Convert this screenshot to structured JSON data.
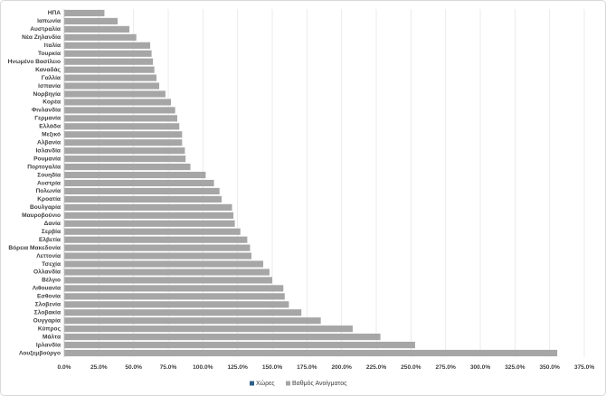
{
  "chart_data": {
    "type": "barh",
    "categories": [
      "ΗΠΑ",
      "Ιαπωνία",
      "Αυστραλία",
      "Νέα Ζηλανδία",
      "Ιταλία",
      "Τουρκία",
      "Ηνωμένο Βασίλειο",
      "Καναδάς",
      "Γαλλία",
      "Ισπανία",
      "Νορβηγία",
      "Κορέα",
      "Φινλανδία",
      "Γερμανία",
      "Ελλάδα",
      "Μεξικό",
      "Αλβανία",
      "Ισλανδία",
      "Ρουμανία",
      "Πορτογαλία",
      "Σουηδία",
      "Αυστρία",
      "Πολωνία",
      "Κροατία",
      "Βουλγαρία",
      "Μαυροβούνιο",
      "Δανία",
      "Σερβία",
      "Ελβετία",
      "Βόρεια Μακεδονία",
      "Λεττονία",
      "Τσεχία",
      "Ολλανδία",
      "Βέλγιο",
      "Λιθουανία",
      "Εσθονία",
      "Σλοβενία",
      "Σλοβακία",
      "Ουγγαρία",
      "Κύπρος",
      "Μάλτα",
      "Ιρλανδία",
      "Λουξεμβούργο"
    ],
    "series": [
      {
        "name": "Βαθμός Ανοίγματος",
        "color": "#a6a6a6",
        "values": [
          29,
          38.5,
          47,
          52,
          62,
          63,
          64,
          65,
          66.5,
          68.5,
          73,
          77,
          80,
          81.5,
          83,
          85,
          85,
          87,
          87.5,
          91,
          102,
          108,
          112,
          113.5,
          121,
          122,
          123,
          127,
          132,
          134,
          135,
          143.5,
          148,
          150,
          158,
          159,
          162,
          171,
          185,
          208,
          228,
          253,
          355.5
        ]
      }
    ],
    "legend_entries": [
      {
        "name": "Χώρες",
        "color": "#2e5f8a"
      }
    ],
    "xlim": [
      0,
      375
    ],
    "xticks": [
      {
        "value": 0,
        "label": "0.0%"
      },
      {
        "value": 25,
        "label": "25.0%"
      },
      {
        "value": 50,
        "label": "50.0%"
      },
      {
        "value": 75,
        "label": "75.0%"
      },
      {
        "value": 100,
        "label": "100.0%"
      },
      {
        "value": 125,
        "label": "125.0%"
      },
      {
        "value": 150,
        "label": "150.0%"
      },
      {
        "value": 175,
        "label": "175.0%"
      },
      {
        "value": 200,
        "label": "200.0%"
      },
      {
        "value": 225,
        "label": "225.0%"
      },
      {
        "value": 250,
        "label": "250.0%"
      },
      {
        "value": 275,
        "label": "275.0%"
      },
      {
        "value": 300,
        "label": "300.0%"
      },
      {
        "value": 325,
        "label": "325.0%"
      },
      {
        "value": 350,
        "label": "350.0%"
      },
      {
        "value": 375,
        "label": "375.0%"
      }
    ],
    "grid": true,
    "legend": "bottom"
  }
}
